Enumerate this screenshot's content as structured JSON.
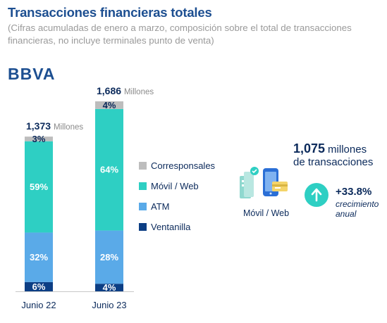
{
  "title": "Transacciones financieras totales",
  "subtitle": "(Cifras acumuladas de enero a marzo, composición sobre el total de transacciones financieras, no incluye terminales punto de venta)",
  "logo": "BBVA",
  "colors": {
    "Corresponsales": "#bdbdbd",
    "Movil": "#2ecfc3",
    "ATM": "#5aaae8",
    "Ventanilla": "#0c3e84"
  },
  "chart_data": {
    "type": "bar",
    "stacked": true,
    "percent_stacked": true,
    "categories": [
      "Junio 22",
      "Junio 23"
    ],
    "totals": [
      {
        "value": "1,373",
        "unit": "Millones"
      },
      {
        "value": "1,686",
        "unit": "Millones"
      }
    ],
    "series": [
      {
        "name": "Ventanilla",
        "values": [
          6,
          4
        ],
        "labels": [
          "6%",
          "4%"
        ]
      },
      {
        "name": "ATM",
        "values": [
          32,
          28
        ],
        "labels": [
          "32%",
          "28%"
        ]
      },
      {
        "name": "Móvil / Web",
        "values": [
          59,
          64
        ],
        "labels": [
          "59%",
          "64%"
        ]
      },
      {
        "name": "Corresponsales",
        "values": [
          3,
          4
        ],
        "labels": [
          "3%",
          "4%"
        ]
      }
    ],
    "legend": [
      "Corresponsales",
      "Móvil / Web",
      "ATM",
      "Ventanilla"
    ],
    "legend_position": "right",
    "grid": false
  },
  "kpi": {
    "value": "1,075",
    "unit_line1": "millones",
    "unit_line2": "de transacciones",
    "icon_label": "Móvil / Web",
    "icon": "phone-and-card-icon",
    "growth": "+33.8%",
    "growth_label": "crecimiento anual",
    "growth_icon": "arrow-up-icon"
  }
}
